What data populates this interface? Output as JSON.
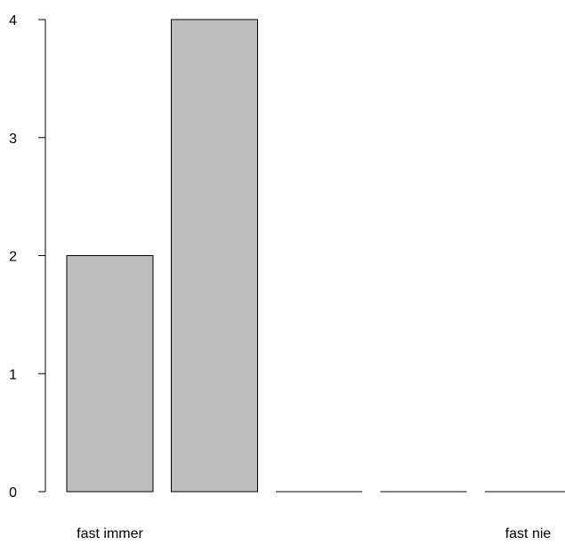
{
  "chart_data": {
    "type": "bar",
    "categories": [
      "fast immer",
      "",
      "",
      "",
      "fast nie"
    ],
    "values": [
      2,
      4,
      0,
      0,
      0
    ],
    "ylim": [
      0,
      4
    ],
    "yticks": [
      "0",
      "1",
      "2",
      "3",
      "4"
    ],
    "title": "",
    "xlabel": "",
    "ylabel": "",
    "grid": false,
    "bar_color": "#bebebe",
    "bar_border_color": "#000000",
    "axis_color": "#000000"
  }
}
